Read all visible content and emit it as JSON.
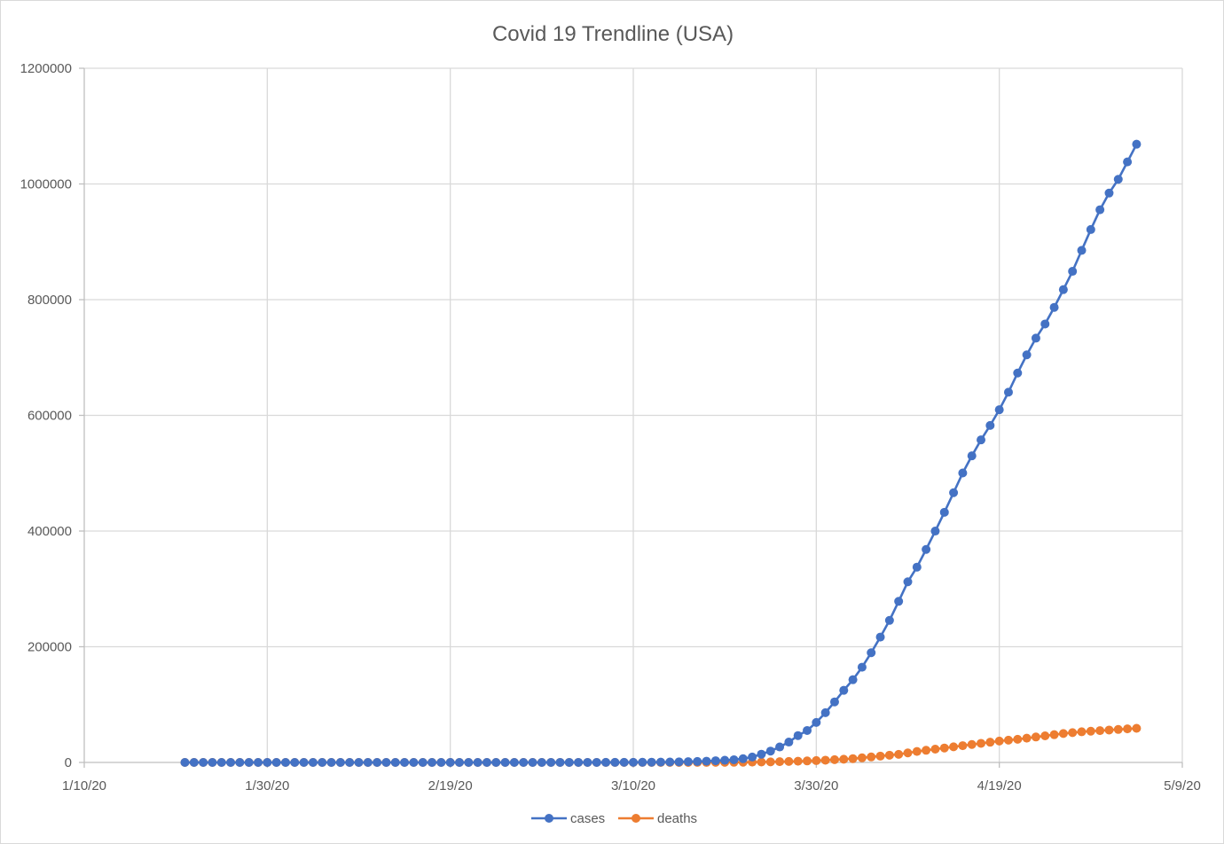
{
  "chart_data": {
    "type": "line",
    "title": "Covid 19 Trendline (USA)",
    "xlabel": "",
    "ylabel": "",
    "x_ticks": [
      "1/10/20",
      "1/30/20",
      "2/19/20",
      "3/10/20",
      "3/30/20",
      "4/19/20",
      "5/9/20"
    ],
    "y_ticks": [
      "0",
      "200000",
      "400000",
      "600000",
      "800000",
      "1000000",
      "1200000"
    ],
    "xlim": [
      "2020-01-10",
      "2020-05-09"
    ],
    "ylim": [
      0,
      1200000
    ],
    "grid": true,
    "legend_position": "bottom",
    "x_start": "2020-01-21",
    "series": [
      {
        "name": "cases",
        "color": "#4472C4",
        "values": [
          1,
          1,
          1,
          2,
          2,
          5,
          5,
          5,
          5,
          6,
          7,
          8,
          11,
          11,
          11,
          12,
          12,
          12,
          12,
          12,
          13,
          13,
          14,
          14,
          14,
          14,
          14,
          14,
          14,
          14,
          15,
          15,
          15,
          15,
          15,
          15,
          15,
          35,
          35,
          35,
          53,
          57,
          60,
          60,
          68,
          89,
          103,
          125,
          159,
          233,
          338,
          433,
          554,
          754,
          1025,
          1312,
          1663,
          2174,
          2951,
          3774,
          4661,
          6427,
          9415,
          14250,
          19624,
          26747,
          35206,
          46442,
          55231,
          69194,
          85991,
          104686,
          124665,
          143025,
          164620,
          189618,
          216722,
          245540,
          278458,
          312237,
          337635,
          368196,
          399929,
          432438,
          466299,
          500399,
          530006,
          557590,
          582594,
          609685,
          640014,
          673215,
          704608,
          733441,
          757942,
          786638,
          817361,
          848994,
          885192,
          921176,
          955451,
          984208,
          1008049,
          1038150,
          1068711
        ]
      },
      {
        "name": "deaths",
        "color": "#ED7D31",
        "values": [
          0,
          0,
          0,
          0,
          0,
          0,
          0,
          0,
          0,
          0,
          0,
          0,
          0,
          0,
          0,
          0,
          0,
          0,
          0,
          0,
          0,
          0,
          0,
          0,
          0,
          0,
          0,
          0,
          0,
          0,
          0,
          0,
          0,
          0,
          0,
          0,
          0,
          0,
          0,
          1,
          1,
          2,
          6,
          7,
          11,
          12,
          15,
          19,
          22,
          26,
          30,
          38,
          41,
          49,
          60,
          78,
          100,
          130,
          180,
          250,
          320,
          430,
          570,
          800,
          1000,
          1300,
          1700,
          2100,
          2600,
          3200,
          3900,
          4800,
          5600,
          6600,
          8000,
          9500,
          11000,
          12500,
          14000,
          16500,
          19000,
          21000,
          23000,
          25000,
          27000,
          29000,
          31000,
          33000,
          35000,
          37000,
          38500,
          40000,
          42000,
          44000,
          46000,
          48000,
          50000,
          51500,
          53000,
          54000,
          55000,
          56000,
          57000,
          58000,
          59000
        ]
      }
    ]
  }
}
